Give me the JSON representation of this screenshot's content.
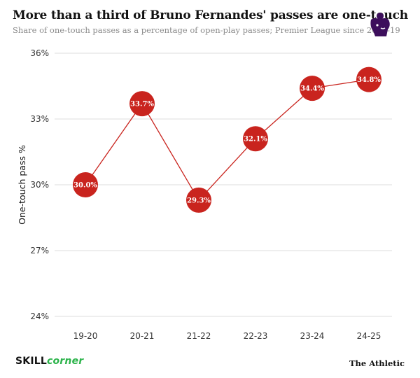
{
  "header": {
    "title": "More than a third of Bruno Fernandes' passes are one-touch",
    "subtitle": "Share of one-touch passes as a percentage of open-play passes; Premier League since 2018-19",
    "logo_icon": "premier-league-lion-icon"
  },
  "chart_data": {
    "type": "line",
    "categories": [
      "19-20",
      "20-21",
      "21-22",
      "22-23",
      "23-24",
      "24-25"
    ],
    "values": [
      30.0,
      33.7,
      29.3,
      32.1,
      34.4,
      34.8
    ],
    "data_labels": [
      "30.0%",
      "33.7%",
      "29.3%",
      "32.1%",
      "34.4%",
      "34.8%"
    ],
    "ylabel": "One-touch pass %",
    "yticks": [
      24,
      27,
      30,
      33,
      36
    ],
    "ytick_labels": [
      "24%",
      "27%",
      "30%",
      "33%",
      "36%"
    ],
    "ylim": [
      24,
      36
    ],
    "grid": "horizontal",
    "line_color": "#c9241e",
    "marker_color": "#c9241e",
    "grid_color": "#dddddd"
  },
  "footer": {
    "left_brand_part1": "SKILL",
    "left_brand_part2": "corner",
    "left_brand_color": "#2bb34a",
    "right_brand": "The Athletic"
  }
}
